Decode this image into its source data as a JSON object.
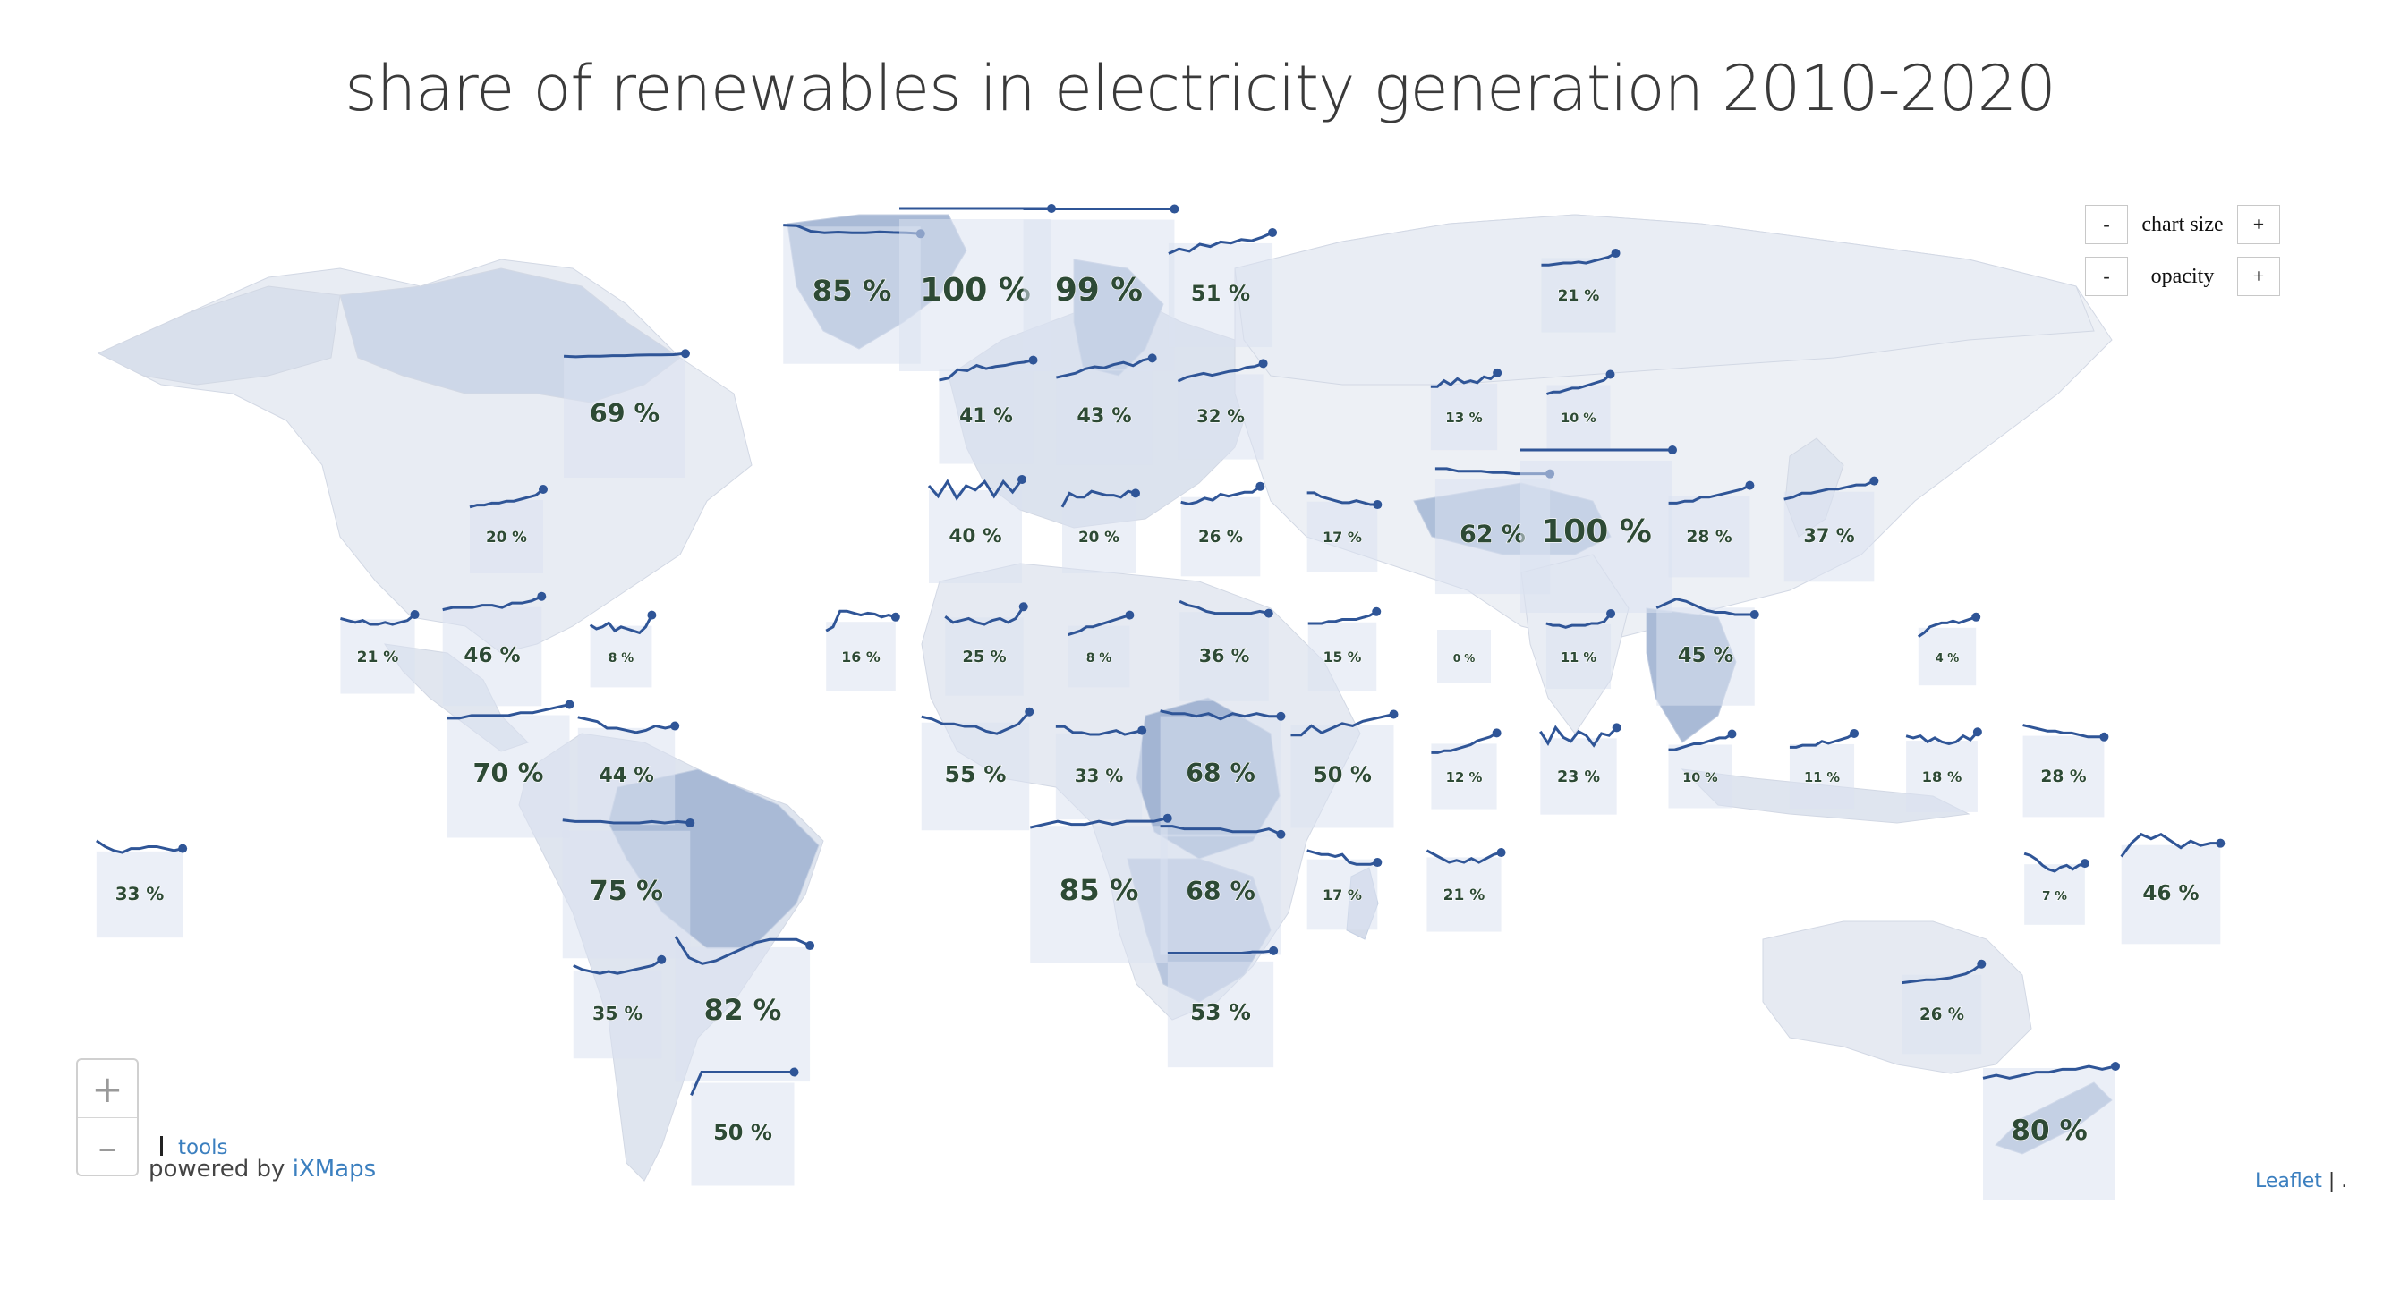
{
  "title": "share of renewables in electricity generation 2010-2020",
  "controls": {
    "chart_size": {
      "minus": "-",
      "label": "chart size",
      "plus": "+"
    },
    "opacity": {
      "minus": "-",
      "label": "opacity",
      "plus": "+"
    }
  },
  "zoom": {
    "in_label": "+",
    "out_label": "–"
  },
  "tools_label": "tools",
  "powered_by": {
    "prefix": "powered by ",
    "brand": "iXMaps"
  },
  "attribution": {
    "leaflet": "Leaflet",
    "separator": " | ."
  },
  "colors": {
    "line": "#2f5597",
    "box": "#dbe2f0",
    "land": "#e4e9f2",
    "land_dark": "#a9bad6"
  },
  "chart_data": {
    "type": "map",
    "series_period": "2010-2020",
    "markers": [
      {
        "label": "85 %",
        "value": 85,
        "trend": [
          0.3,
          0.32,
          0.5,
          0.55,
          0.53,
          0.55,
          0.55,
          0.52,
          0.54,
          0.55,
          0.58
        ]
      },
      {
        "label": "100 %",
        "value": 100,
        "trend": [
          0.0,
          0.0,
          0.0,
          0.0,
          0.0,
          0.0,
          0.0,
          0.0,
          0.0,
          0.0,
          0.0
        ]
      },
      {
        "label": "99 %",
        "value": 99,
        "trend": [
          0.0,
          0.0,
          0.0,
          0.0,
          0.0,
          0.0,
          0.0,
          0.0,
          0.0,
          0.0,
          0.0
        ]
      },
      {
        "label": "51 %",
        "value": 51,
        "trend": [
          0.9,
          0.7,
          0.8,
          0.5,
          0.6,
          0.4,
          0.45,
          0.3,
          0.35,
          0.2,
          0.0
        ]
      },
      {
        "label": "21 %",
        "value": 21,
        "trend": [
          0.9,
          0.9,
          0.85,
          0.8,
          0.8,
          0.75,
          0.8,
          0.7,
          0.6,
          0.5,
          0.3
        ]
      },
      {
        "label": "69 %",
        "value": 69,
        "trend": [
          0.4,
          0.42,
          0.4,
          0.4,
          0.38,
          0.38,
          0.36,
          0.35,
          0.35,
          0.34,
          0.3
        ]
      },
      {
        "label": "41 %",
        "value": 41,
        "trend": [
          1.0,
          0.9,
          0.5,
          0.55,
          0.3,
          0.45,
          0.35,
          0.3,
          0.2,
          0.15,
          0.05
        ]
      },
      {
        "label": "43 %",
        "value": 43,
        "trend": [
          0.9,
          0.8,
          0.7,
          0.5,
          0.4,
          0.45,
          0.3,
          0.2,
          0.35,
          0.1,
          0.0
        ]
      },
      {
        "label": "32 %",
        "value": 32,
        "trend": [
          0.9,
          0.7,
          0.6,
          0.5,
          0.6,
          0.5,
          0.4,
          0.35,
          0.2,
          0.15,
          0.0
        ]
      },
      {
        "label": "13 %",
        "value": 13,
        "trend": [
          0.7,
          0.7,
          0.4,
          0.6,
          0.3,
          0.5,
          0.4,
          0.5,
          0.2,
          0.3,
          0.0
        ]
      },
      {
        "label": "10 %",
        "value": 10,
        "trend": [
          1.0,
          0.9,
          0.9,
          0.8,
          0.7,
          0.7,
          0.6,
          0.5,
          0.4,
          0.3,
          0.0
        ]
      },
      {
        "label": "20 %",
        "value": 20,
        "trend": [
          0.9,
          0.8,
          0.8,
          0.7,
          0.7,
          0.6,
          0.6,
          0.5,
          0.4,
          0.3,
          0.0
        ]
      },
      {
        "label": "40 %",
        "value": 40,
        "trend": [
          0.3,
          0.8,
          0.1,
          0.9,
          0.3,
          0.5,
          0.1,
          0.8,
          0.1,
          0.6,
          0.0
        ]
      },
      {
        "label": "20 %",
        "value": 20,
        "trend": [
          0.9,
          0.2,
          0.4,
          0.4,
          0.1,
          0.2,
          0.3,
          0.3,
          0.4,
          0.1,
          0.2
        ]
      },
      {
        "label": "26 %",
        "value": 26,
        "trend": [
          0.8,
          0.9,
          0.8,
          0.6,
          0.7,
          0.4,
          0.5,
          0.4,
          0.3,
          0.3,
          0.0
        ]
      },
      {
        "label": "17 %",
        "value": 17,
        "trend": [
          0.1,
          0.1,
          0.3,
          0.4,
          0.5,
          0.6,
          0.6,
          0.5,
          0.6,
          0.7,
          0.7
        ]
      },
      {
        "label": "62 %",
        "value": 62,
        "trend": [
          0.0,
          0.0,
          0.1,
          0.1,
          0.1,
          0.15,
          0.15,
          0.2,
          0.2,
          0.2,
          0.2
        ]
      },
      {
        "label": "100 %",
        "value": 100,
        "trend": [
          0.0,
          0.0,
          0.0,
          0.0,
          0.0,
          0.0,
          0.0,
          0.0,
          0.0,
          0.0,
          0.0
        ]
      },
      {
        "label": "28 %",
        "value": 28,
        "trend": [
          0.9,
          0.9,
          0.8,
          0.8,
          0.6,
          0.6,
          0.5,
          0.4,
          0.3,
          0.2,
          0.0
        ]
      },
      {
        "label": "37 %",
        "value": 37,
        "trend": [
          0.9,
          0.8,
          0.6,
          0.6,
          0.5,
          0.4,
          0.4,
          0.3,
          0.2,
          0.2,
          0.0
        ]
      },
      {
        "label": "21 %",
        "value": 21,
        "trend": [
          0.5,
          0.6,
          0.7,
          0.6,
          0.8,
          0.8,
          0.7,
          0.8,
          0.7,
          0.6,
          0.3
        ]
      },
      {
        "label": "46 %",
        "value": 46,
        "trend": [
          0.6,
          0.5,
          0.5,
          0.5,
          0.4,
          0.4,
          0.5,
          0.3,
          0.3,
          0.2,
          0.0
        ]
      },
      {
        "label": "8 %",
        "value": 8,
        "trend": [
          0.5,
          0.7,
          0.6,
          0.4,
          0.8,
          0.6,
          0.7,
          0.8,
          0.9,
          0.6,
          0.0
        ]
      },
      {
        "label": "16 %",
        "value": 16,
        "trend": [
          1.0,
          0.8,
          0.0,
          0.0,
          0.1,
          0.2,
          0.1,
          0.15,
          0.3,
          0.2,
          0.3
        ]
      },
      {
        "label": "25 %",
        "value": 25,
        "trend": [
          0.5,
          0.8,
          0.7,
          0.6,
          0.8,
          0.9,
          0.7,
          0.6,
          0.8,
          0.6,
          0.0
        ]
      },
      {
        "label": "8 %",
        "value": 8,
        "trend": [
          1.0,
          0.9,
          0.8,
          0.6,
          0.6,
          0.5,
          0.4,
          0.3,
          0.2,
          0.1,
          0.0
        ]
      },
      {
        "label": "36 %",
        "value": 36,
        "trend": [
          0.0,
          0.2,
          0.3,
          0.5,
          0.6,
          0.6,
          0.6,
          0.6,
          0.6,
          0.5,
          0.6
        ]
      },
      {
        "label": "15 %",
        "value": 15,
        "trend": [
          0.6,
          0.6,
          0.6,
          0.5,
          0.5,
          0.4,
          0.4,
          0.4,
          0.3,
          0.2,
          0.0
        ]
      },
      {
        "label": "0 %",
        "value": 0,
        "trend": []
      },
      {
        "label": "11 %",
        "value": 11,
        "trend": [
          0.5,
          0.6,
          0.6,
          0.7,
          0.6,
          0.6,
          0.6,
          0.5,
          0.5,
          0.4,
          0.0
        ]
      },
      {
        "label": "45 %",
        "value": 45,
        "trend": [
          0.5,
          0.3,
          0.1,
          0.2,
          0.4,
          0.6,
          0.7,
          0.7,
          0.8,
          0.8,
          0.8
        ]
      },
      {
        "label": "4 %",
        "value": 4,
        "trend": [
          1.0,
          0.8,
          0.5,
          0.4,
          0.3,
          0.3,
          0.2,
          0.3,
          0.2,
          0.1,
          0.0
        ]
      },
      {
        "label": "70 %",
        "value": 70,
        "trend": [
          0.5,
          0.5,
          0.4,
          0.4,
          0.4,
          0.4,
          0.3,
          0.3,
          0.2,
          0.1,
          0.0
        ]
      },
      {
        "label": "44 %",
        "value": 44,
        "trend": [
          0.0,
          0.1,
          0.2,
          0.5,
          0.5,
          0.6,
          0.7,
          0.6,
          0.4,
          0.5,
          0.4
        ]
      },
      {
        "label": "55 %",
        "value": 55,
        "trend": [
          0.2,
          0.3,
          0.5,
          0.5,
          0.6,
          0.6,
          0.8,
          0.9,
          0.7,
          0.5,
          0.0
        ]
      },
      {
        "label": "33 %",
        "value": 33,
        "trend": [
          0.2,
          0.2,
          0.5,
          0.5,
          0.6,
          0.6,
          0.5,
          0.4,
          0.6,
          0.5,
          0.4
        ]
      },
      {
        "label": "68 %",
        "value": 68,
        "trend": [
          0.2,
          0.3,
          0.3,
          0.4,
          0.3,
          0.5,
          0.3,
          0.4,
          0.3,
          0.4,
          0.4
        ]
      },
      {
        "label": "50 %",
        "value": 50,
        "trend": [
          0.9,
          0.9,
          0.5,
          0.8,
          0.6,
          0.4,
          0.5,
          0.3,
          0.2,
          0.1,
          0.0
        ]
      },
      {
        "label": "12 %",
        "value": 12,
        "trend": [
          1.0,
          1.0,
          0.9,
          0.9,
          0.8,
          0.7,
          0.6,
          0.4,
          0.3,
          0.2,
          0.0
        ]
      },
      {
        "label": "23 %",
        "value": 23,
        "trend": [
          0.2,
          0.8,
          0.0,
          0.5,
          0.7,
          0.2,
          0.4,
          0.9,
          0.3,
          0.4,
          0.0
        ]
      },
      {
        "label": "10 %",
        "value": 10,
        "trend": [
          0.8,
          0.8,
          0.7,
          0.6,
          0.5,
          0.5,
          0.4,
          0.3,
          0.2,
          0.2,
          0.0
        ]
      },
      {
        "label": "11 %",
        "value": 11,
        "trend": [
          0.7,
          0.7,
          0.6,
          0.6,
          0.6,
          0.4,
          0.5,
          0.4,
          0.3,
          0.2,
          0.0
        ]
      },
      {
        "label": "18 %",
        "value": 18,
        "trend": [
          0.3,
          0.4,
          0.3,
          0.6,
          0.4,
          0.6,
          0.7,
          0.6,
          0.3,
          0.5,
          0.1
        ]
      },
      {
        "label": "28 %",
        "value": 28,
        "trend": [
          0.0,
          0.1,
          0.2,
          0.3,
          0.3,
          0.4,
          0.4,
          0.5,
          0.6,
          0.6,
          0.6
        ]
      },
      {
        "label": "33 %",
        "value": 33,
        "trend": [
          0.0,
          0.3,
          0.5,
          0.6,
          0.4,
          0.4,
          0.3,
          0.3,
          0.4,
          0.5,
          0.4
        ]
      },
      {
        "label": "75 %",
        "value": 75,
        "trend": [
          0.0,
          0.05,
          0.05,
          0.05,
          0.1,
          0.1,
          0.1,
          0.05,
          0.1,
          0.05,
          0.1
        ]
      },
      {
        "label": "85 %",
        "value": 85,
        "trend": [
          0.4,
          0.3,
          0.2,
          0.3,
          0.3,
          0.2,
          0.3,
          0.2,
          0.2,
          0.2,
          0.1
        ]
      },
      {
        "label": "68 %",
        "value": 68,
        "trend": [
          0.1,
          0.1,
          0.2,
          0.2,
          0.2,
          0.2,
          0.3,
          0.3,
          0.3,
          0.2,
          0.4
        ]
      },
      {
        "label": "17 %",
        "value": 17,
        "trend": [
          0.1,
          0.2,
          0.3,
          0.3,
          0.4,
          0.3,
          0.7,
          0.8,
          0.8,
          0.8,
          0.7
        ]
      },
      {
        "label": "21 %",
        "value": 21,
        "trend": [
          0.2,
          0.4,
          0.6,
          0.8,
          0.7,
          0.8,
          0.6,
          0.8,
          0.6,
          0.4,
          0.3
        ]
      },
      {
        "label": "7 %",
        "value": 7,
        "trend": [
          0.0,
          0.1,
          0.3,
          0.6,
          0.8,
          0.9,
          0.7,
          0.6,
          0.8,
          0.6,
          0.5
        ]
      },
      {
        "label": "46 %",
        "value": 46,
        "trend": [
          1.0,
          0.4,
          0.0,
          0.2,
          0.0,
          0.3,
          0.6,
          0.3,
          0.5,
          0.4,
          0.4
        ]
      },
      {
        "label": "35 %",
        "value": 35,
        "trend": [
          0.3,
          0.5,
          0.6,
          0.7,
          0.6,
          0.7,
          0.6,
          0.5,
          0.4,
          0.3,
          0.0
        ]
      },
      {
        "label": "82 %",
        "value": 82,
        "trend": [
          0.0,
          0.7,
          0.9,
          0.8,
          0.6,
          0.4,
          0.2,
          0.1,
          0.1,
          0.1,
          0.3
        ]
      },
      {
        "label": "53 %",
        "value": 53,
        "trend": [
          0.1,
          0.1,
          0.1,
          0.1,
          0.1,
          0.1,
          0.1,
          0.1,
          0.05,
          0.05,
          0.0
        ]
      },
      {
        "label": "26 %",
        "value": 26,
        "trend": [
          0.95,
          0.9,
          0.85,
          0.8,
          0.8,
          0.75,
          0.7,
          0.6,
          0.5,
          0.3,
          0.0
        ]
      },
      {
        "label": "50 %",
        "value": 50,
        "trend": [
          1.0,
          0.0,
          0.0,
          0.0,
          0.0,
          0.0,
          0.0,
          0.0,
          0.0,
          0.0,
          0.0
        ]
      },
      {
        "label": "80 %",
        "value": 80,
        "trend": [
          0.7,
          0.6,
          0.7,
          0.6,
          0.5,
          0.5,
          0.4,
          0.4,
          0.3,
          0.4,
          0.3
        ]
      }
    ]
  }
}
